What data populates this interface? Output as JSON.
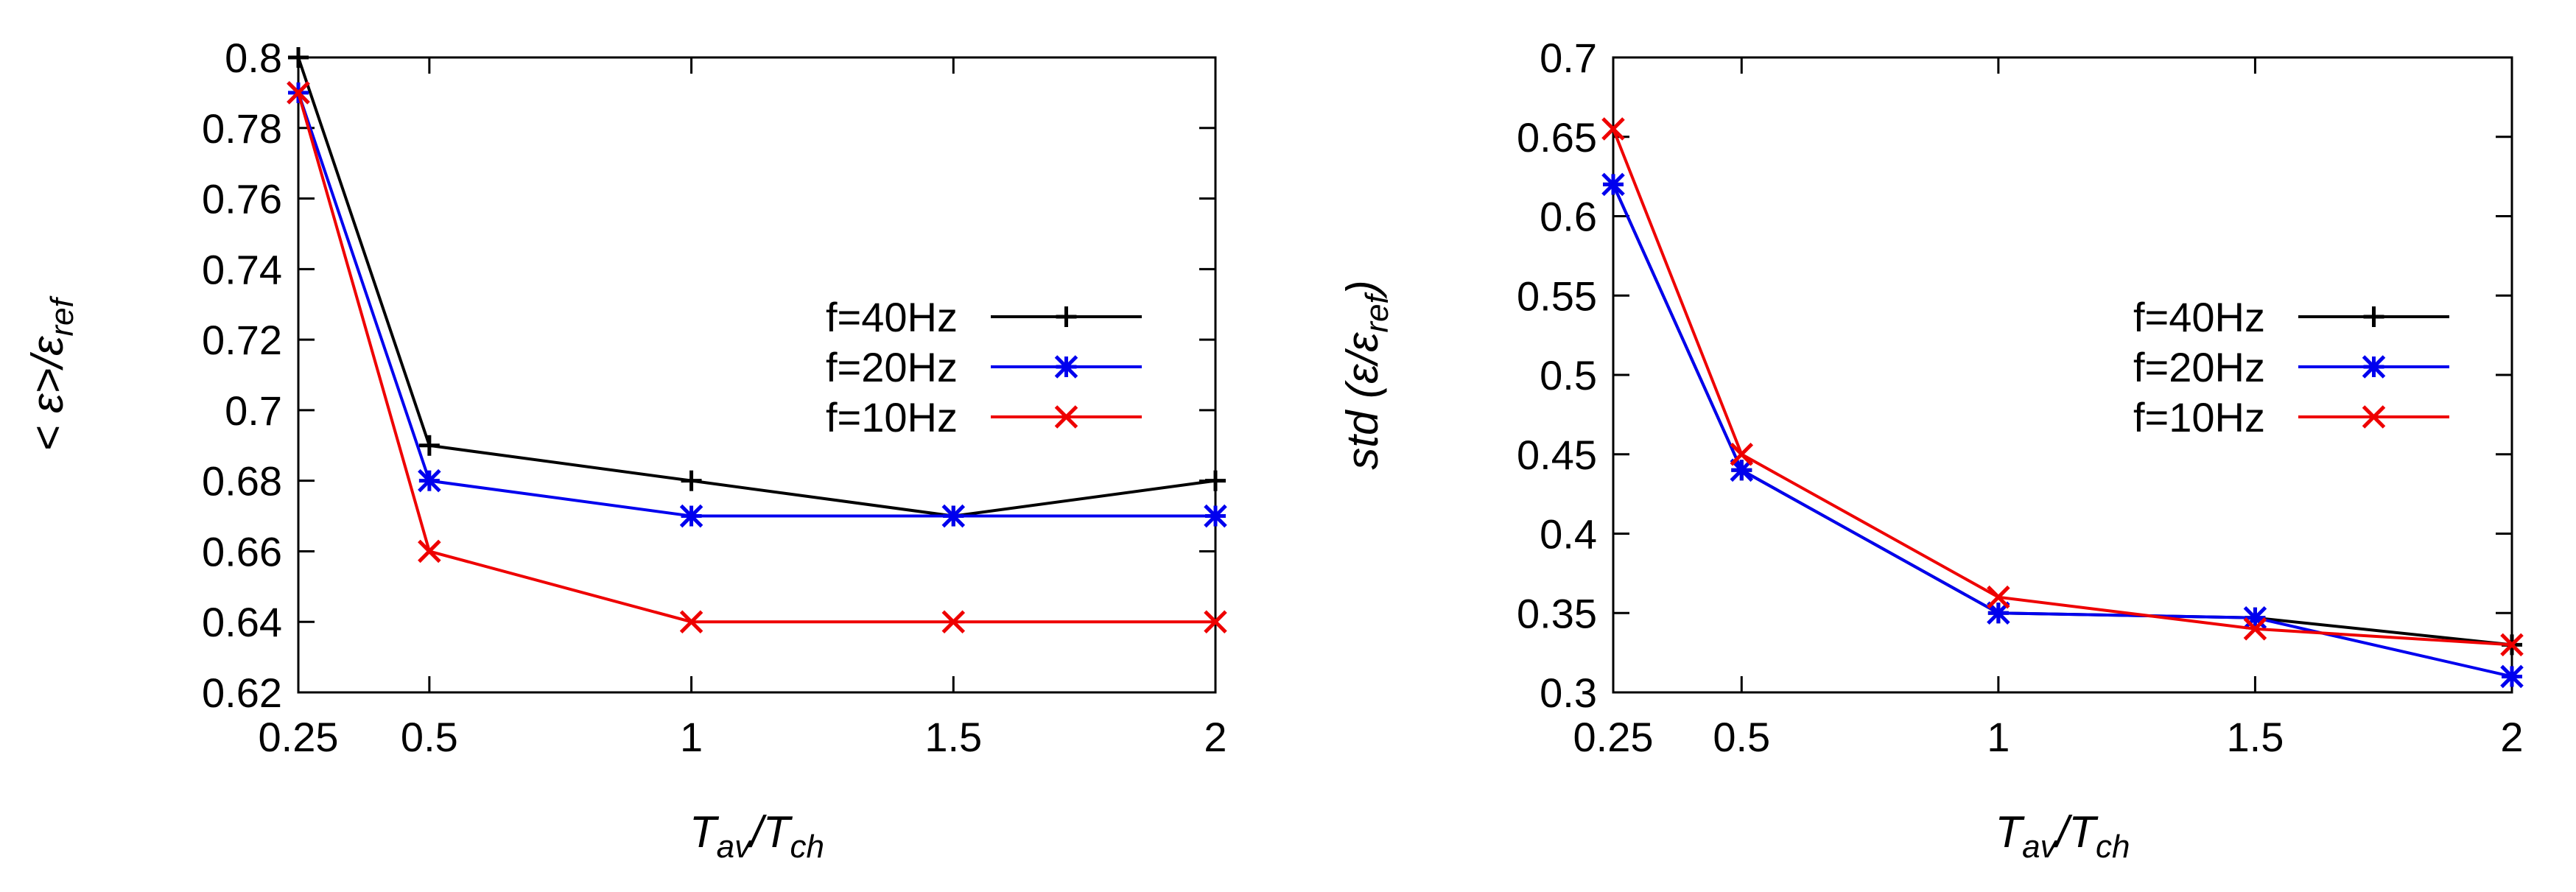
{
  "chart_data": [
    {
      "type": "line",
      "id": "left",
      "x": [
        0.25,
        0.5,
        1,
        1.5,
        2
      ],
      "xticks": [
        "0.25",
        "0.5",
        "1",
        "1.5",
        "2"
      ],
      "xlim": [
        0.25,
        2
      ],
      "ylim": [
        0.62,
        0.8
      ],
      "yticks": [
        "0.62",
        "0.64",
        "0.66",
        "0.68",
        "0.7",
        "0.72",
        "0.74",
        "0.76",
        "0.78",
        "0.8"
      ],
      "xlabel": {
        "main": "T",
        "sub1": "av",
        "sep": "/T",
        "sub2": "ch"
      },
      "ylabel": {
        "pre": "< ε>/ε",
        "sub": "ref"
      },
      "legend_position": "right-middle",
      "series": [
        {
          "name": "f=40Hz",
          "color": "#000000",
          "marker": "plus",
          "values": [
            0.8,
            0.69,
            0.68,
            0.67,
            0.68
          ]
        },
        {
          "name": "f=20Hz",
          "color": "#0000ee",
          "marker": "star",
          "values": [
            0.79,
            0.68,
            0.67,
            0.67,
            0.67
          ]
        },
        {
          "name": "f=10Hz",
          "color": "#ee0000",
          "marker": "cross",
          "values": [
            0.79,
            0.66,
            0.64,
            0.64,
            0.64
          ]
        }
      ]
    },
    {
      "type": "line",
      "id": "right",
      "x": [
        0.25,
        0.5,
        1,
        1.5,
        2
      ],
      "xticks": [
        "0.25",
        "0.5",
        "1",
        "1.5",
        "2"
      ],
      "xlim": [
        0.25,
        2
      ],
      "ylim": [
        0.3,
        0.7
      ],
      "yticks": [
        "0.3",
        "0.35",
        "0.4",
        "0.45",
        "0.5",
        "0.55",
        "0.6",
        "0.65",
        "0.7"
      ],
      "xlabel": {
        "main": "T",
        "sub1": "av",
        "sep": "/T",
        "sub2": "ch"
      },
      "ylabel": {
        "pre": "std (ε/ε",
        "sub": "ref",
        "post": ")"
      },
      "legend_position": "right-middle",
      "series": [
        {
          "name": "f=40Hz",
          "color": "#000000",
          "marker": "plus",
          "values": [
            0.62,
            0.44,
            0.35,
            0.347,
            0.33
          ]
        },
        {
          "name": "f=20Hz",
          "color": "#0000ee",
          "marker": "star",
          "values": [
            0.62,
            0.44,
            0.35,
            0.347,
            0.31
          ]
        },
        {
          "name": "f=10Hz",
          "color": "#ee0000",
          "marker": "cross",
          "values": [
            0.655,
            0.45,
            0.36,
            0.34,
            0.33
          ]
        }
      ]
    }
  ]
}
